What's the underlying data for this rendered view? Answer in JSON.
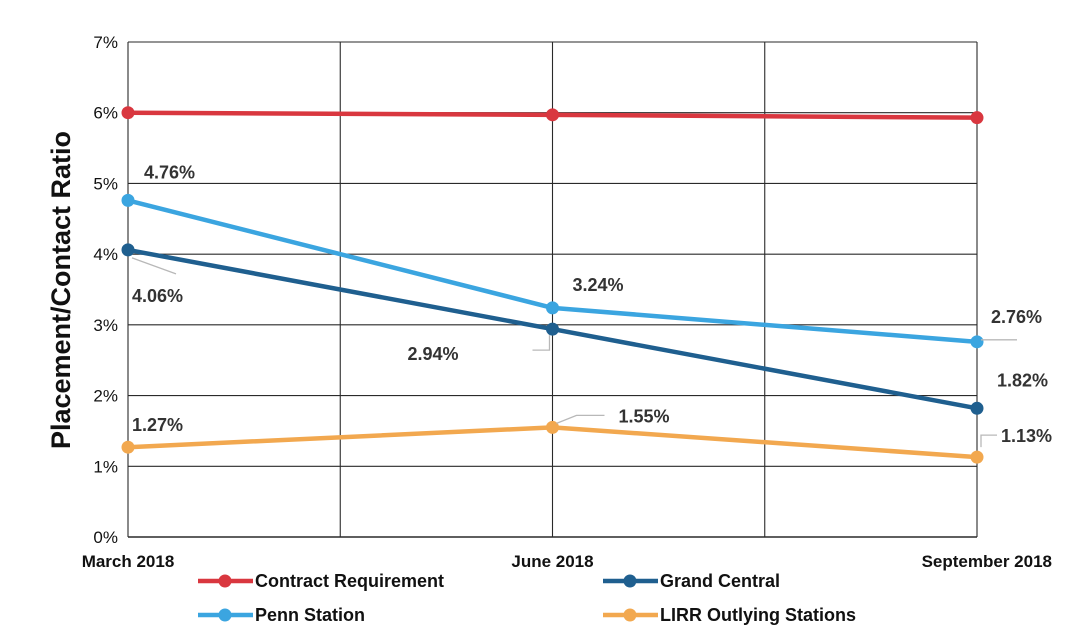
{
  "chart_data": {
    "type": "line",
    "title": "",
    "xlabel": "",
    "ylabel": "Placement/Contact Ratio",
    "categories": [
      "March 2018",
      "June 2018",
      "September 2018"
    ],
    "y_ticks": [
      "0%",
      "1%",
      "2%",
      "3%",
      "4%",
      "5%",
      "6%",
      "7%"
    ],
    "ylim": [
      0,
      7
    ],
    "grid": true,
    "legend_position": "bottom",
    "series": [
      {
        "name": "Contract Requirement",
        "color": "#d9373f",
        "values": [
          6.0,
          5.97,
          5.93
        ],
        "labels": [
          "",
          "",
          ""
        ]
      },
      {
        "name": "Grand Central",
        "color": "#1f5f8f",
        "values": [
          4.06,
          2.94,
          1.82
        ],
        "labels": [
          "4.06%",
          "2.94%",
          "1.82%"
        ]
      },
      {
        "name": "Penn Station",
        "color": "#3ba5e0",
        "values": [
          4.76,
          3.24,
          2.76
        ],
        "labels": [
          "4.76%",
          "3.24%",
          "2.76%"
        ]
      },
      {
        "name": "LIRR Outlying Stations",
        "color": "#f2a84f",
        "values": [
          1.27,
          1.55,
          1.13
        ],
        "labels": [
          "1.27%",
          "1.55%",
          "1.13%"
        ]
      }
    ]
  }
}
